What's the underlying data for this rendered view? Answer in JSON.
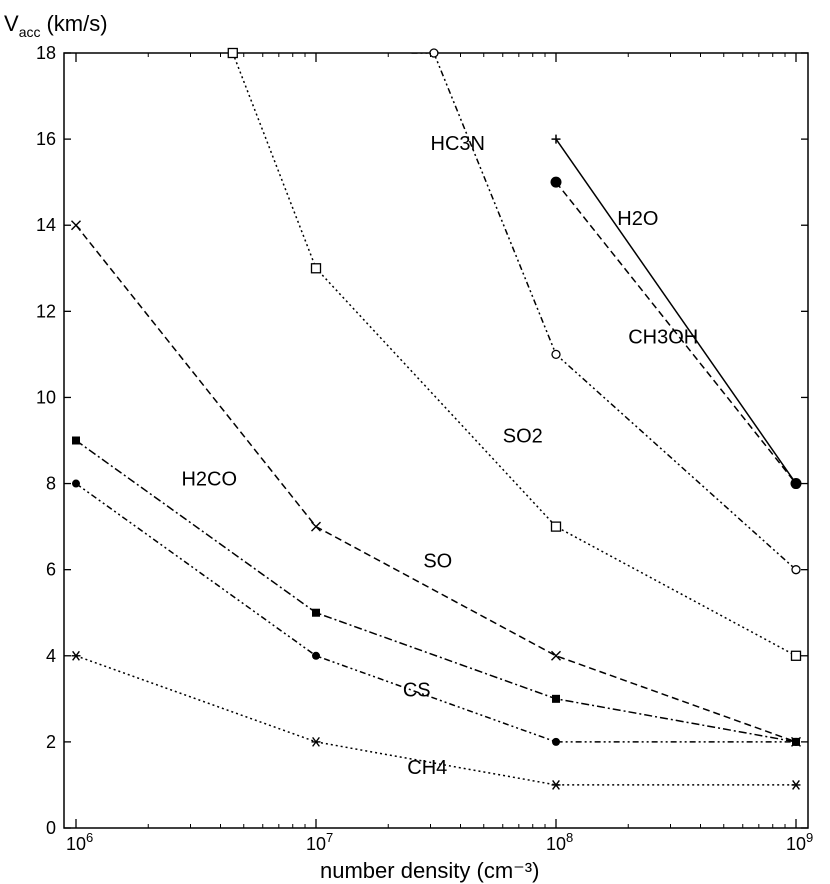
{
  "chart_data": {
    "type": "line",
    "xlabel": "number density (cm⁻³)",
    "ylabel": "V",
    "ylabel_sub": "acc",
    "ylabel_unit": "(km/s)",
    "x_scale": "log",
    "xlim": [
      1000000,
      1000000000
    ],
    "ylim": [
      0,
      18
    ],
    "x_ticks": [
      {
        "value": 1000000,
        "base": "10",
        "exp": "6"
      },
      {
        "value": 10000000,
        "base": "10",
        "exp": "7"
      },
      {
        "value": 100000000,
        "base": "10",
        "exp": "8"
      },
      {
        "value": 1000000000,
        "base": "10",
        "exp": "9"
      }
    ],
    "y_ticks": [
      0,
      2,
      4,
      6,
      8,
      10,
      12,
      14,
      16,
      18
    ],
    "grid": false,
    "legend": "none",
    "series": [
      {
        "name": "H2O",
        "marker": "plus",
        "dash": "solid",
        "x": [
          100000000,
          1000000000
        ],
        "y": [
          16,
          8
        ],
        "label_at": {
          "x": 180000000,
          "y": 14.0
        }
      },
      {
        "name": "CH3OH",
        "marker": "circle",
        "dash": "dashdotdot",
        "x": [
          31000000,
          100000000,
          1000000000
        ],
        "y": [
          18,
          11,
          6
        ],
        "label_at": {
          "x": 200000000,
          "y": 11.25
        }
      },
      {
        "name": "",
        "marker": "filled-circle-large",
        "dash": "dashed",
        "x": [
          100000000,
          1000000000
        ],
        "y": [
          15,
          8
        ]
      },
      {
        "name": "HC3N",
        "marker": "none",
        "dash": "dashdotdot",
        "x": [
          25000000,
          31000000
        ],
        "y": [
          18,
          18
        ],
        "label_at": {
          "x": 30000000,
          "y": 15.75
        }
      },
      {
        "name": "SO2",
        "marker": "square",
        "dash": "dotted",
        "x": [
          4500000,
          10000000,
          100000000,
          1000000000
        ],
        "y": [
          18,
          13,
          7,
          4
        ],
        "label_at": {
          "x": 60000000,
          "y": 8.95
        }
      },
      {
        "name": "SO",
        "marker": "cross",
        "dash": "dashed",
        "x": [
          1000000,
          10000000,
          100000000,
          1000000000
        ],
        "y": [
          14,
          7,
          4,
          2
        ],
        "label_at": {
          "x": 28000000,
          "y": 6.05
        }
      },
      {
        "name": "H2CO",
        "marker": "filled-square",
        "dash": "dashdot",
        "x": [
          1000000,
          10000000,
          100000000,
          1000000000
        ],
        "y": [
          9,
          5,
          3,
          2
        ],
        "label_at": {
          "x": 2750000,
          "y": 7.95
        }
      },
      {
        "name": "CS",
        "marker": "filled-circle",
        "dash": "dashdotdot",
        "x": [
          1000000,
          10000000,
          100000000,
          1000000000
        ],
        "y": [
          8,
          4,
          2,
          2
        ],
        "label_at": {
          "x": 23000000,
          "y": 3.05
        }
      },
      {
        "name": "CH4",
        "marker": "asterisk",
        "dash": "dotted",
        "x": [
          1000000,
          10000000,
          100000000,
          1000000000
        ],
        "y": [
          4,
          2,
          1,
          1
        ],
        "label_at": {
          "x": 24000000,
          "y": 1.25
        }
      }
    ]
  }
}
